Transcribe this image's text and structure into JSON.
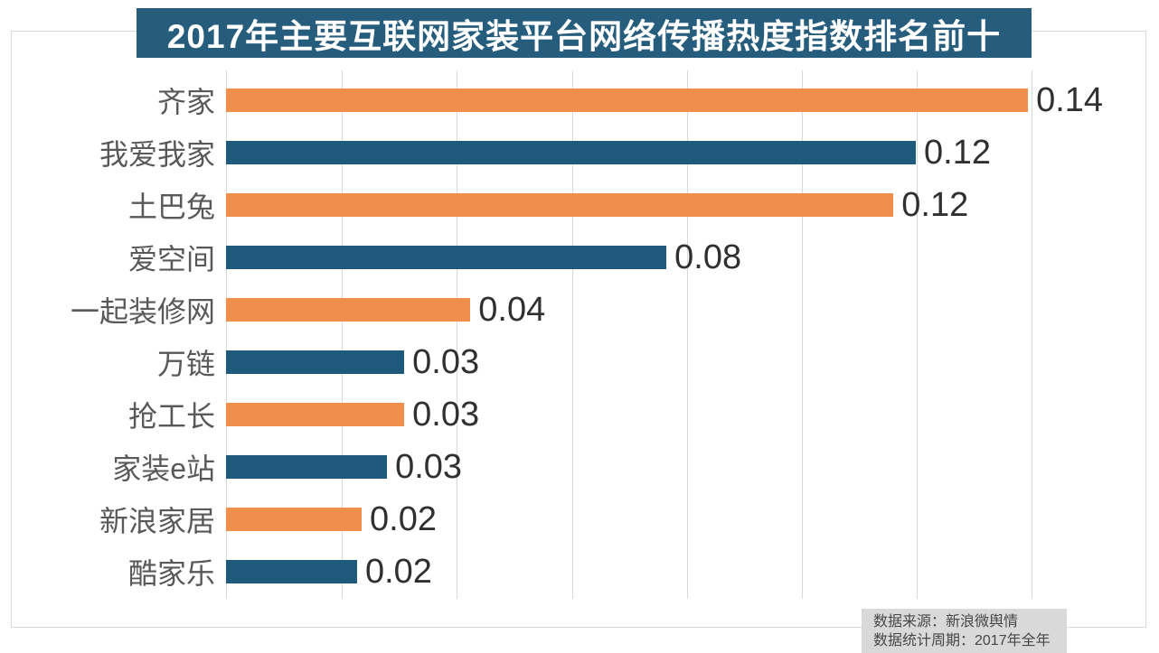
{
  "title": {
    "text": "2017年主要互联网家装平台网络传播热度指数排名前十",
    "bg_color": "#275d7c",
    "text_color": "#ffffff"
  },
  "colors": {
    "orange_bar": "#ef8f4b",
    "teal_bar": "#1d5a7b",
    "gridline": "#d9d9d9",
    "frame_border": "#d9d9d9",
    "category_text": "#595959",
    "value_text": "#303030",
    "source_bg": "#d9d9d9"
  },
  "chart_data": {
    "type": "bar",
    "orientation": "horizontal",
    "title": "2017年主要互联网家装平台网络传播热度指数排名前十",
    "categories": [
      "齐家",
      "我爱我家",
      "土巴兔",
      "爱空间",
      "一起装修网",
      "万链",
      "抢工长",
      "家装e站",
      "新浪家居",
      "酷家乐"
    ],
    "values": [
      0.14,
      0.12,
      0.12,
      0.08,
      0.04,
      0.03,
      0.03,
      0.03,
      0.02,
      0.02
    ],
    "value_labels": [
      "0.14",
      "0.12",
      "0.12",
      "0.08",
      "0.04",
      "0.03",
      "0.03",
      "0.03",
      "0.02",
      "0.02"
    ],
    "values_precise_est": [
      0.1395,
      0.12,
      0.1161,
      0.0766,
      0.0425,
      0.031,
      0.031,
      0.028,
      0.0236,
      0.0228
    ],
    "bar_colors_alternating": [
      "#ef8f4b",
      "#1d5a7b"
    ],
    "xlabel": "",
    "ylabel": "",
    "xlim": [
      0,
      0.16
    ],
    "axis_max_at_plot_edge": 0.1604,
    "gridline_step": 0.02,
    "grid": "vertical gridlines, light gray, no x tick labels",
    "legend": "none",
    "value_label_position": "right of bar end"
  },
  "source_box": {
    "line1": "数据来源：新浪微舆情",
    "line2": "数据统计周期：2017年全年"
  }
}
